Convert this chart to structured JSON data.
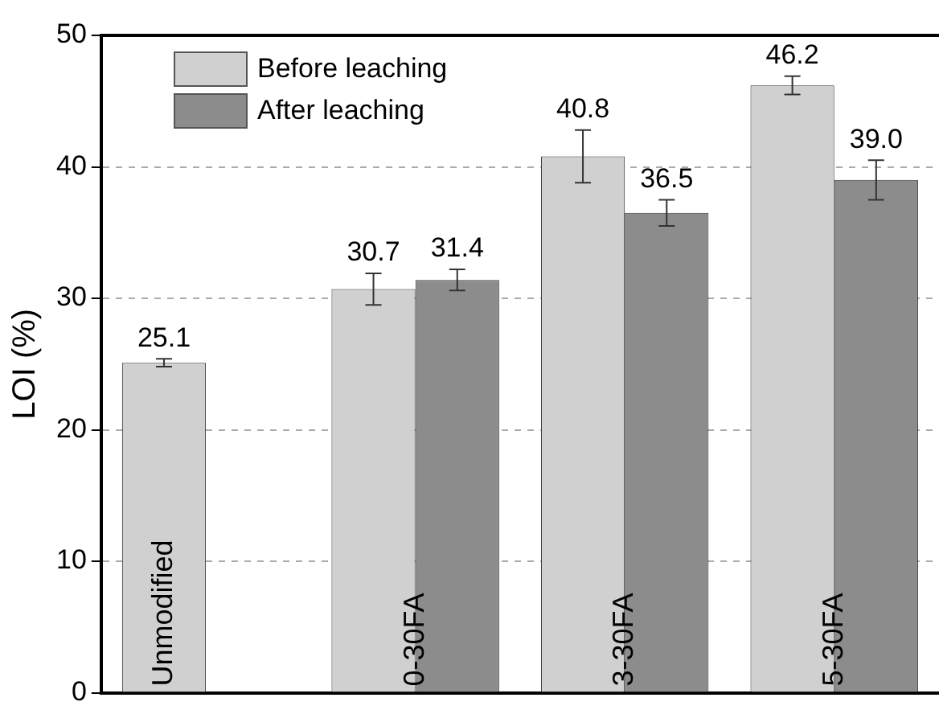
{
  "chart_data": {
    "type": "bar",
    "ylabel": "LOI (%)",
    "categories": [
      "Unmodified",
      "0-30FA",
      "3-30FA",
      "5-30FA"
    ],
    "series": [
      {
        "name": "Before leaching",
        "color": "#d0d0d0",
        "values": [
          25.1,
          30.7,
          40.8,
          46.2
        ],
        "value_labels": [
          "25.1",
          "30.7",
          "40.8",
          "46.2"
        ],
        "errors": [
          0.3,
          1.2,
          2.0,
          0.7
        ]
      },
      {
        "name": "After leaching",
        "color": "#8c8c8c",
        "values": [
          null,
          31.4,
          36.5,
          39.0
        ],
        "value_labels": [
          null,
          "31.4",
          "36.5",
          "39.0"
        ],
        "errors": [
          null,
          0.8,
          1.0,
          1.5
        ]
      }
    ],
    "ylim": [
      0,
      50
    ],
    "yticks": [
      0,
      10,
      20,
      30,
      40,
      50
    ],
    "grid": "y",
    "legend": "top left"
  }
}
